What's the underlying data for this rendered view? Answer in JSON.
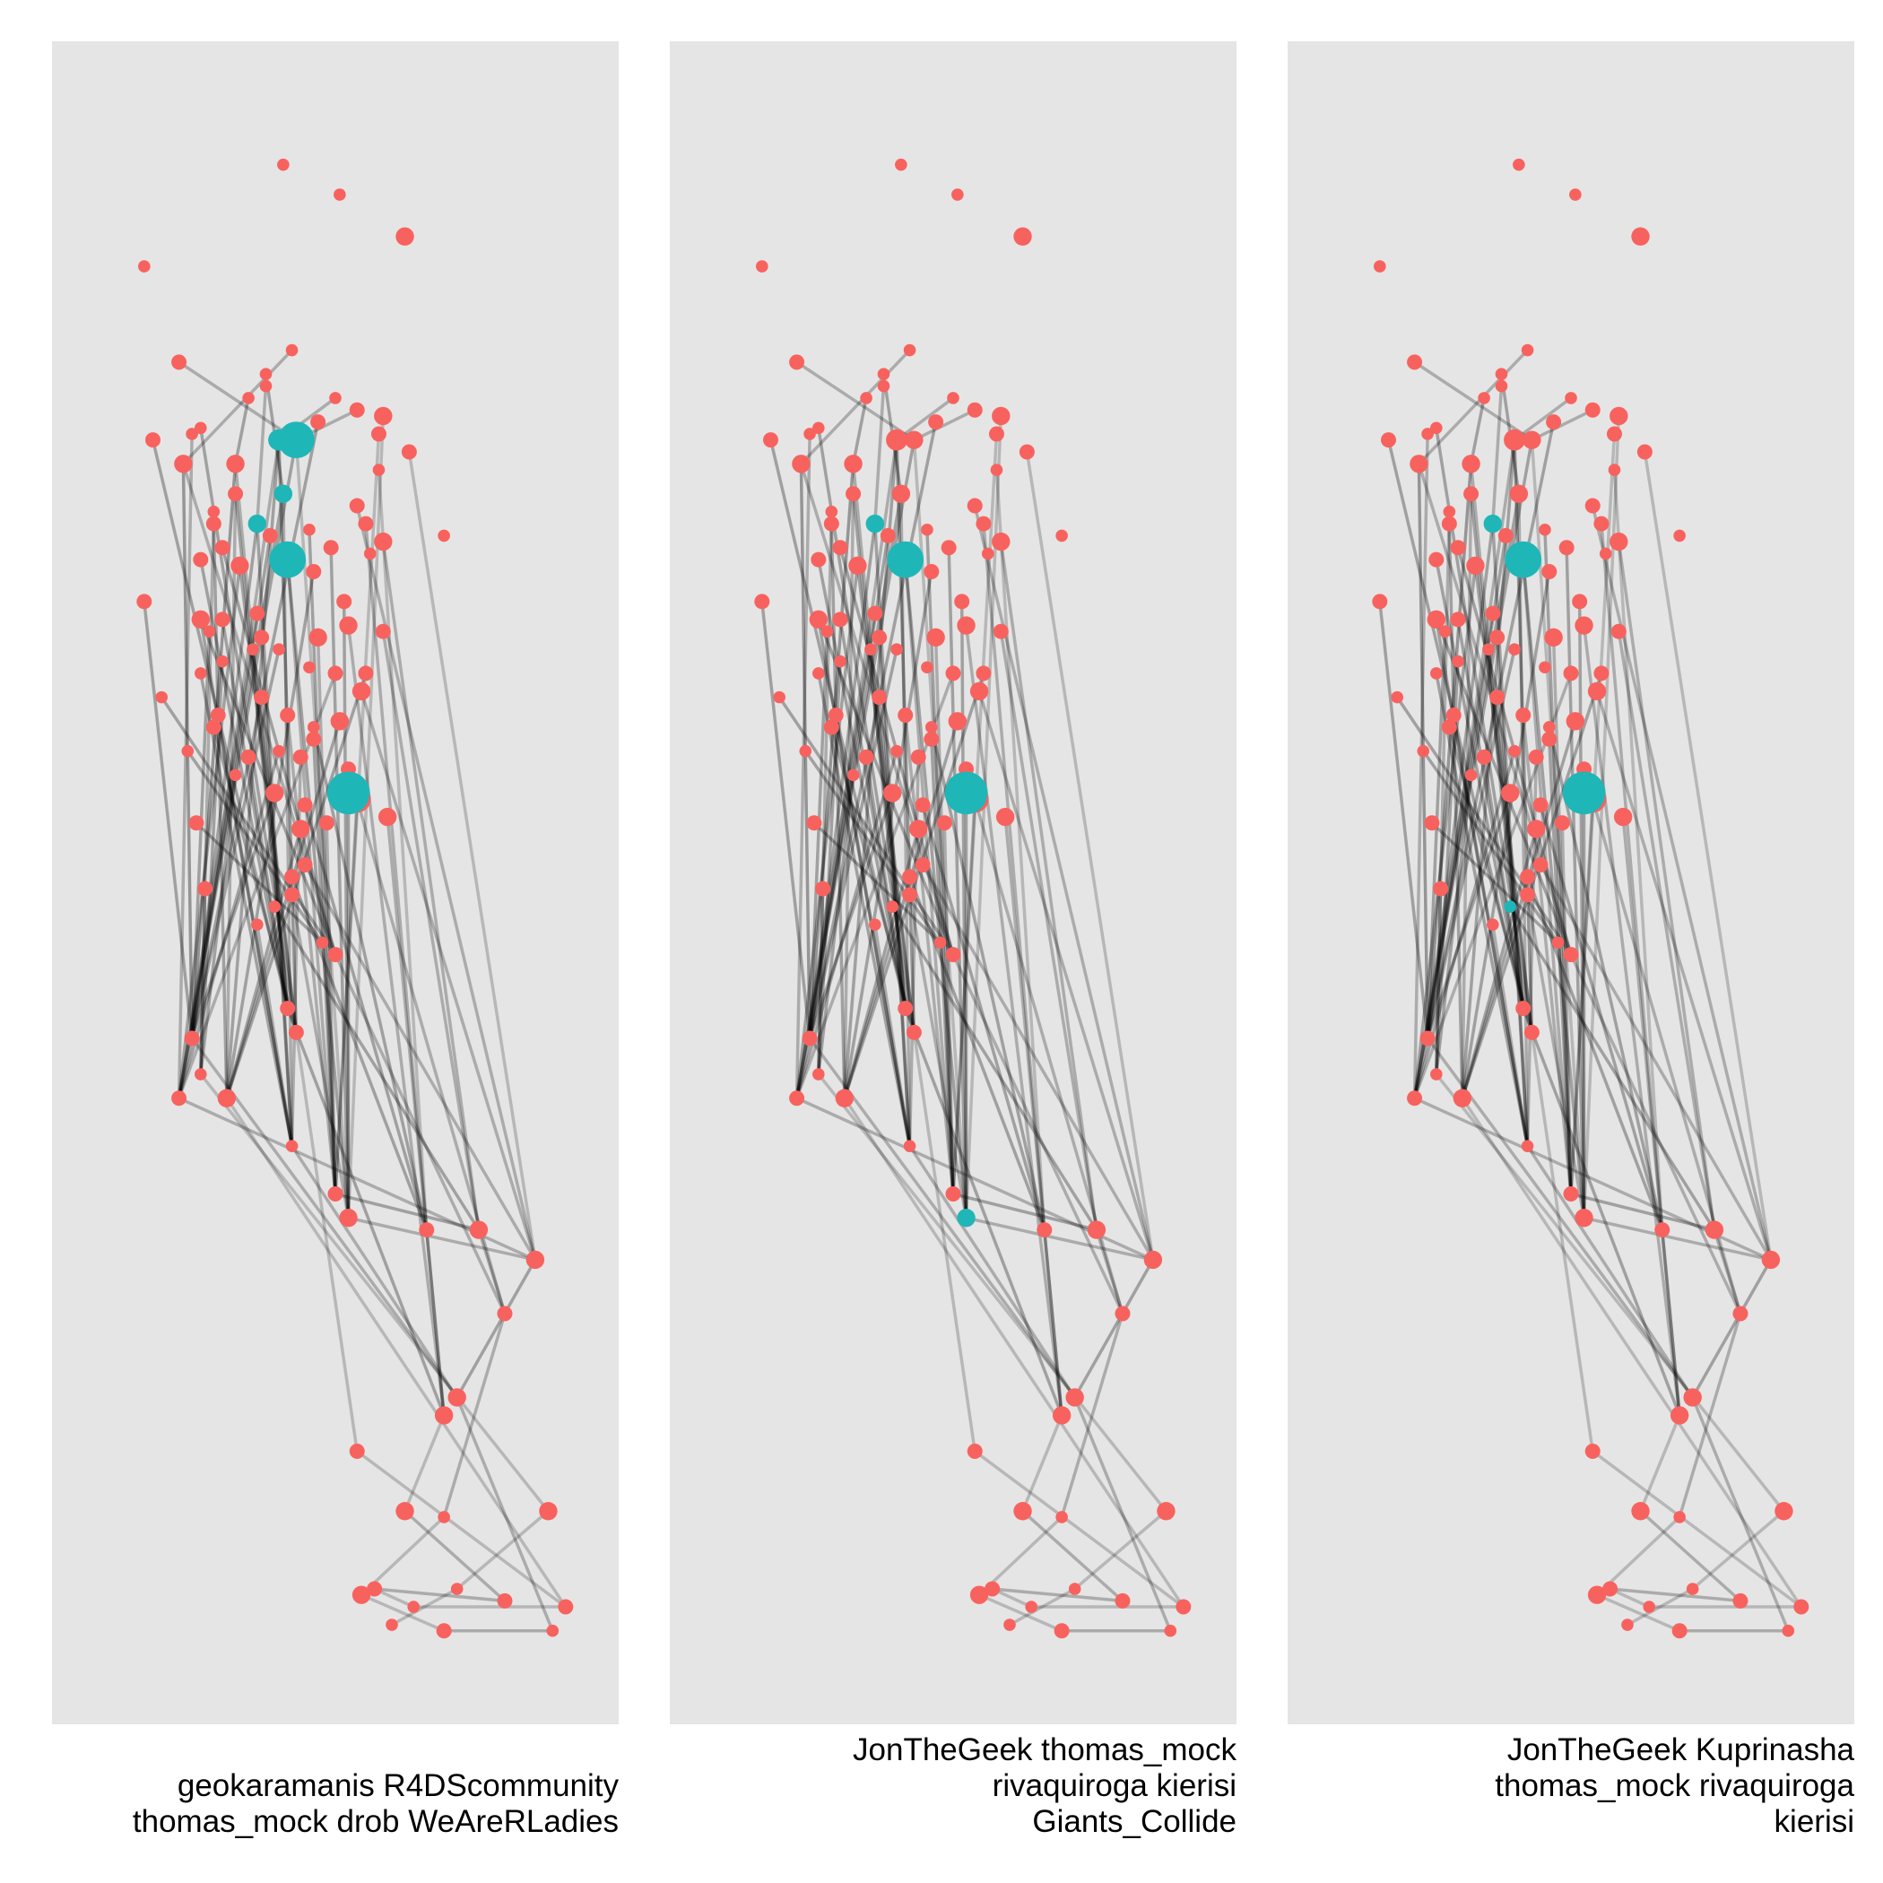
{
  "chart_data": {
    "type": "network",
    "grid": false,
    "legend": "none",
    "colors": {
      "highlighted": "#1fb6b8",
      "other": "#f8625e",
      "edge": "#000000",
      "panel": "#e5e5e5"
    },
    "nodes": [
      [
        58,
        15,
        4
      ],
      [
        71,
        20,
        4
      ],
      [
        86,
        27,
        6
      ],
      [
        26,
        32,
        4
      ],
      [
        60,
        46,
        4
      ],
      [
        34,
        48,
        5
      ],
      [
        54,
        50,
        4
      ],
      [
        54,
        52,
        4
      ],
      [
        50,
        54,
        4
      ],
      [
        70,
        54,
        4
      ],
      [
        81,
        57,
        6
      ],
      [
        75,
        56,
        5
      ],
      [
        66,
        58,
        5
      ],
      [
        39,
        59,
        4
      ],
      [
        28,
        61,
        5
      ],
      [
        37,
        60,
        4
      ],
      [
        80,
        60,
        5
      ],
      [
        87,
        63,
        5
      ],
      [
        57,
        61,
        7
      ],
      [
        61,
        61,
        6
      ],
      [
        35,
        65,
        6
      ],
      [
        47,
        65,
        6
      ],
      [
        80,
        66,
        4
      ],
      [
        47,
        70,
        5
      ],
      [
        58,
        70,
        6
      ],
      [
        75,
        72,
        5
      ],
      [
        42,
        73,
        4
      ],
      [
        42,
        75,
        5
      ],
      [
        52,
        75,
        6
      ],
      [
        77,
        75,
        5
      ],
      [
        64,
        76,
        4
      ],
      [
        55,
        77,
        5
      ],
      [
        44,
        79,
        5
      ],
      [
        81,
        78,
        6
      ],
      [
        69,
        79,
        5
      ],
      [
        59,
        81,
        6
      ],
      [
        39,
        81,
        5
      ],
      [
        48,
        82,
        6
      ],
      [
        65,
        83,
        5
      ],
      [
        72,
        88,
        5
      ],
      [
        39,
        91,
        6
      ],
      [
        52,
        90,
        5
      ],
      [
        44,
        91,
        5
      ],
      [
        26,
        88,
        5
      ],
      [
        41,
        93,
        4
      ],
      [
        81,
        93,
        5
      ],
      [
        53,
        94,
        5
      ],
      [
        73,
        92,
        6
      ],
      [
        57,
        96,
        4
      ],
      [
        66,
        94,
        6
      ],
      [
        51,
        96,
        4
      ],
      [
        44,
        98,
        4
      ],
      [
        39,
        100,
        4
      ],
      [
        77,
        100,
        5
      ],
      [
        70,
        100,
        5
      ],
      [
        30,
        104,
        4
      ],
      [
        76,
        103,
        6
      ],
      [
        53,
        104,
        5
      ],
      [
        43,
        107,
        5
      ],
      [
        65,
        109,
        4
      ],
      [
        59,
        107,
        5
      ],
      [
        71,
        108,
        6
      ],
      [
        42,
        109,
        5
      ],
      [
        65,
        111,
        5
      ],
      [
        36,
        113,
        4
      ],
      [
        57,
        113,
        4
      ],
      [
        50,
        114,
        5
      ],
      [
        62,
        114,
        5
      ],
      [
        73,
        116,
        5
      ],
      [
        47,
        117,
        4
      ],
      [
        73,
        120,
        7
      ],
      [
        56,
        120,
        6
      ],
      [
        75,
        121,
        9
      ],
      [
        63,
        122,
        5
      ],
      [
        82,
        124,
        6
      ],
      [
        38,
        125,
        5
      ],
      [
        68,
        125,
        5
      ],
      [
        62,
        126,
        6
      ],
      [
        63,
        132,
        5
      ],
      [
        60,
        134,
        5
      ],
      [
        40,
        136,
        5
      ],
      [
        60,
        137,
        5
      ],
      [
        56,
        139,
        4
      ],
      [
        52,
        142,
        4
      ],
      [
        67,
        145,
        4
      ],
      [
        70,
        147,
        5
      ],
      [
        59,
        156,
        5
      ],
      [
        61,
        160,
        5
      ],
      [
        37,
        161,
        5
      ],
      [
        39,
        167,
        4
      ],
      [
        34,
        171,
        5
      ],
      [
        45,
        171,
        6
      ],
      [
        60,
        179,
        4
      ],
      [
        70,
        187,
        5
      ],
      [
        73,
        191,
        6
      ],
      [
        91,
        193,
        5
      ],
      [
        103,
        193,
        6
      ],
      [
        116,
        198,
        6
      ],
      [
        109,
        207,
        5
      ],
      [
        95,
        224,
        6
      ],
      [
        98,
        221,
        6
      ],
      [
        75,
        230,
        5
      ],
      [
        86,
        240,
        6
      ],
      [
        119,
        240,
        6
      ],
      [
        123,
        256,
        5
      ],
      [
        95,
        241,
        4
      ],
      [
        109,
        255,
        5
      ],
      [
        98,
        253,
        4
      ],
      [
        120,
        260,
        4
      ],
      [
        88,
        256,
        4
      ],
      [
        76,
        254,
        6
      ],
      [
        79,
        253,
        5
      ],
      [
        83,
        259,
        4
      ],
      [
        95,
        260,
        5
      ],
      [
        64,
        99,
        4
      ],
      [
        95,
        77,
        4
      ],
      [
        78,
        80,
        4
      ]
    ],
    "edges": [
      [
        18,
        87,
        0.35
      ],
      [
        18,
        88,
        0.25
      ],
      [
        18,
        91,
        0.3
      ],
      [
        19,
        90,
        0.3
      ],
      [
        19,
        94,
        0.2
      ],
      [
        21,
        88,
        0.35
      ],
      [
        21,
        86,
        0.25
      ],
      [
        24,
        90,
        0.3
      ],
      [
        24,
        92,
        0.25
      ],
      [
        28,
        88,
        0.3
      ],
      [
        28,
        92,
        0.3
      ],
      [
        20,
        88,
        0.35
      ],
      [
        20,
        85,
        0.25
      ],
      [
        23,
        86,
        0.3
      ],
      [
        23,
        91,
        0.25
      ],
      [
        35,
        84,
        0.3
      ],
      [
        35,
        93,
        0.25
      ],
      [
        37,
        90,
        0.3
      ],
      [
        37,
        87,
        0.3
      ],
      [
        40,
        85,
        0.3
      ],
      [
        40,
        92,
        0.3
      ],
      [
        41,
        90,
        0.25
      ],
      [
        44,
        88,
        0.3
      ],
      [
        46,
        92,
        0.3
      ],
      [
        49,
        93,
        0.25
      ],
      [
        53,
        91,
        0.3
      ],
      [
        54,
        90,
        0.25
      ],
      [
        57,
        86,
        0.3
      ],
      [
        60,
        93,
        0.25
      ],
      [
        61,
        91,
        0.3
      ],
      [
        66,
        86,
        0.3
      ],
      [
        67,
        92,
        0.25
      ],
      [
        71,
        88,
        0.3
      ],
      [
        72,
        93,
        0.25
      ],
      [
        73,
        95,
        0.3
      ],
      [
        76,
        93,
        0.25
      ],
      [
        77,
        91,
        0.3
      ],
      [
        78,
        97,
        0.25
      ],
      [
        79,
        95,
        0.3
      ],
      [
        80,
        89,
        0.3
      ],
      [
        81,
        94,
        0.25
      ],
      [
        82,
        96,
        0.3
      ],
      [
        83,
        92,
        0.25
      ],
      [
        84,
        94,
        0.3
      ],
      [
        85,
        98,
        0.25
      ],
      [
        86,
        99,
        0.3
      ],
      [
        87,
        101,
        0.2
      ],
      [
        88,
        100,
        0.25
      ],
      [
        89,
        103,
        0.2
      ],
      [
        90,
        97,
        0.25
      ],
      [
        91,
        104,
        0.2
      ],
      [
        92,
        100,
        0.25
      ],
      [
        93,
        96,
        0.3
      ],
      [
        94,
        97,
        0.25
      ],
      [
        95,
        99,
        0.3
      ],
      [
        96,
        98,
        0.25
      ],
      [
        97,
        100,
        0.3
      ],
      [
        98,
        105,
        0.25
      ],
      [
        99,
        102,
        0.2
      ],
      [
        100,
        108,
        0.25
      ],
      [
        101,
        104,
        0.2
      ],
      [
        102,
        106,
        0.25
      ],
      [
        103,
        107,
        0.2
      ],
      [
        104,
        109,
        0.2
      ],
      [
        105,
        110,
        0.2
      ],
      [
        106,
        111,
        0.25
      ],
      [
        107,
        112,
        0.2
      ],
      [
        108,
        113,
        0.25
      ],
      [
        109,
        111,
        0.2
      ],
      [
        110,
        113,
        0.2
      ],
      [
        12,
        88,
        0.3
      ],
      [
        13,
        87,
        0.3
      ],
      [
        14,
        86,
        0.3
      ],
      [
        15,
        90,
        0.25
      ],
      [
        16,
        93,
        0.2
      ],
      [
        17,
        97,
        0.2
      ],
      [
        22,
        95,
        0.2
      ],
      [
        25,
        97,
        0.25
      ],
      [
        26,
        89,
        0.25
      ],
      [
        27,
        91,
        0.3
      ],
      [
        29,
        95,
        0.25
      ],
      [
        30,
        93,
        0.3
      ],
      [
        31,
        88,
        0.3
      ],
      [
        32,
        85,
        0.3
      ],
      [
        33,
        96,
        0.25
      ],
      [
        34,
        94,
        0.3
      ],
      [
        36,
        86,
        0.3
      ],
      [
        38,
        91,
        0.3
      ],
      [
        39,
        94,
        0.3
      ],
      [
        42,
        86,
        0.3
      ],
      [
        43,
        88,
        0.3
      ],
      [
        45,
        96,
        0.25
      ],
      [
        47,
        99,
        0.25
      ],
      [
        48,
        90,
        0.3
      ],
      [
        50,
        87,
        0.3
      ],
      [
        51,
        89,
        0.3
      ],
      [
        52,
        92,
        0.3
      ],
      [
        55,
        85,
        0.3
      ],
      [
        56,
        97,
        0.25
      ],
      [
        58,
        92,
        0.3
      ],
      [
        59,
        95,
        0.3
      ],
      [
        62,
        87,
        0.3
      ],
      [
        63,
        93,
        0.3
      ],
      [
        64,
        84,
        0.3
      ],
      [
        65,
        90,
        0.3
      ],
      [
        68,
        98,
        0.25
      ],
      [
        69,
        89,
        0.3
      ],
      [
        70,
        94,
        0.3
      ],
      [
        74,
        99,
        0.25
      ],
      [
        75,
        84,
        0.3
      ],
      [
        4,
        20,
        0.25
      ],
      [
        5,
        19,
        0.25
      ],
      [
        6,
        24,
        0.3
      ],
      [
        7,
        28,
        0.25
      ],
      [
        8,
        21,
        0.3
      ],
      [
        9,
        18,
        0.25
      ],
      [
        10,
        94,
        0.2
      ],
      [
        11,
        19,
        0.25
      ]
    ],
    "panels": [
      {
        "caption": [
          "geokaramanis R4DScommunity",
          "thomas_mock drob WeAreRLadies"
        ],
        "highlighted": [
          18,
          19,
          28,
          24,
          35,
          70
        ]
      },
      {
        "caption": [
          "JonTheGeek thomas_mock",
          "rivaquiroga kierisi",
          "Giants_Collide"
        ],
        "highlighted": [
          28,
          35,
          70,
          94
        ]
      },
      {
        "caption": [
          "JonTheGeek Kuprinasha",
          "thomas_mock rivaquiroga",
          "kierisi"
        ],
        "highlighted": [
          28,
          35,
          70,
          82
        ]
      }
    ]
  }
}
